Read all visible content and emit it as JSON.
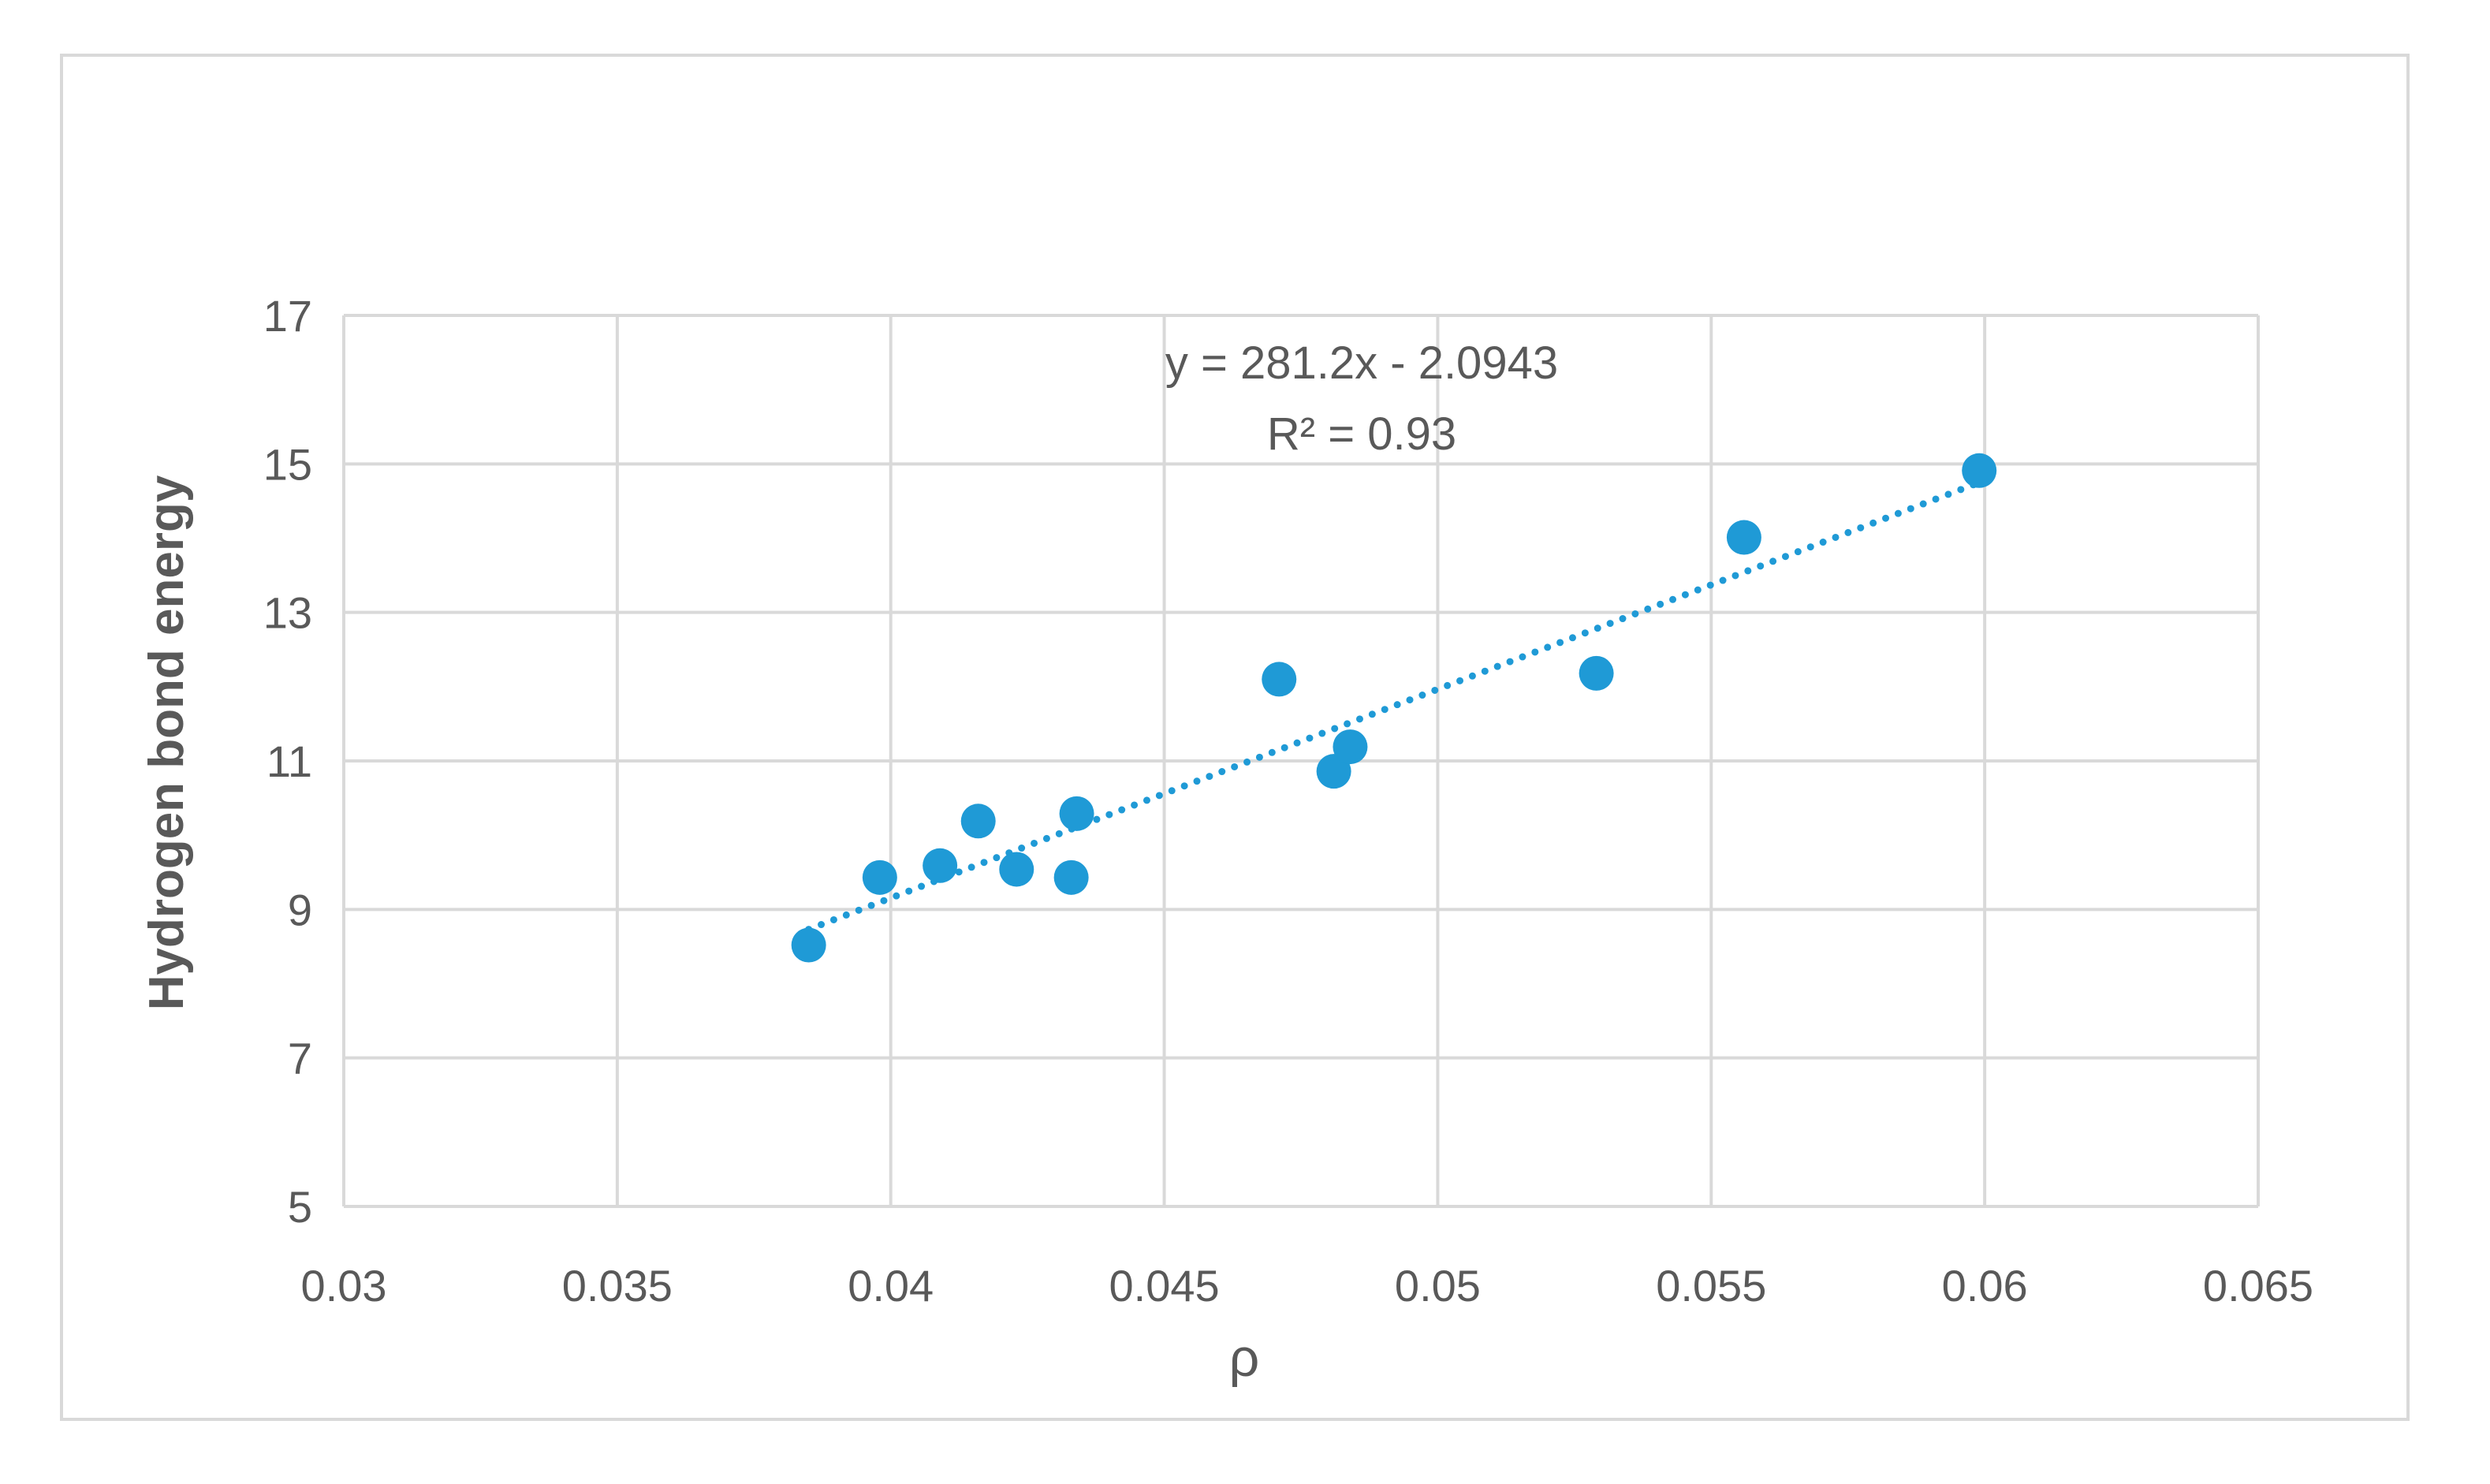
{
  "chart_data": {
    "type": "scatter",
    "title": "",
    "xlabel": "ρ",
    "ylabel": "Hydrogen bond energy",
    "xlim": [
      0.03,
      0.065
    ],
    "ylim": [
      5,
      17
    ],
    "x_ticks": [
      "0.03",
      "0.035",
      "0.04",
      "0.045",
      "0.05",
      "0.055",
      "0.06",
      "0.065"
    ],
    "y_ticks": [
      "5",
      "7",
      "9",
      "11",
      "13",
      "15",
      "17"
    ],
    "x_tick_values": [
      0.03,
      0.035,
      0.04,
      0.045,
      0.05,
      0.055,
      0.06,
      0.065
    ],
    "y_tick_values": [
      5,
      7,
      9,
      11,
      13,
      15,
      17
    ],
    "grid": true,
    "series": [
      {
        "color": "#1f9ad6",
        "points": [
          {
            "x": 0.0385,
            "y": 8.52
          },
          {
            "x": 0.0398,
            "y": 9.43
          },
          {
            "x": 0.0409,
            "y": 9.59
          },
          {
            "x": 0.0416,
            "y": 10.19
          },
          {
            "x": 0.0423,
            "y": 9.54
          },
          {
            "x": 0.0433,
            "y": 9.43
          },
          {
            "x": 0.0434,
            "y": 10.29
          },
          {
            "x": 0.0471,
            "y": 12.1
          },
          {
            "x": 0.0481,
            "y": 10.86
          },
          {
            "x": 0.0484,
            "y": 11.19
          },
          {
            "x": 0.0529,
            "y": 12.18
          },
          {
            "x": 0.0556,
            "y": 14.01
          },
          {
            "x": 0.0599,
            "y": 14.91
          }
        ]
      }
    ],
    "trendline": {
      "type": "linear",
      "slope": 281.2,
      "intercept": -2.0943,
      "x_range": [
        0.0385,
        0.0599
      ],
      "color": "#1f9ad6",
      "style": "dotted",
      "equation_label": "y = 281.2x - 2.0943",
      "r2_label": "R² = 0.93"
    }
  }
}
